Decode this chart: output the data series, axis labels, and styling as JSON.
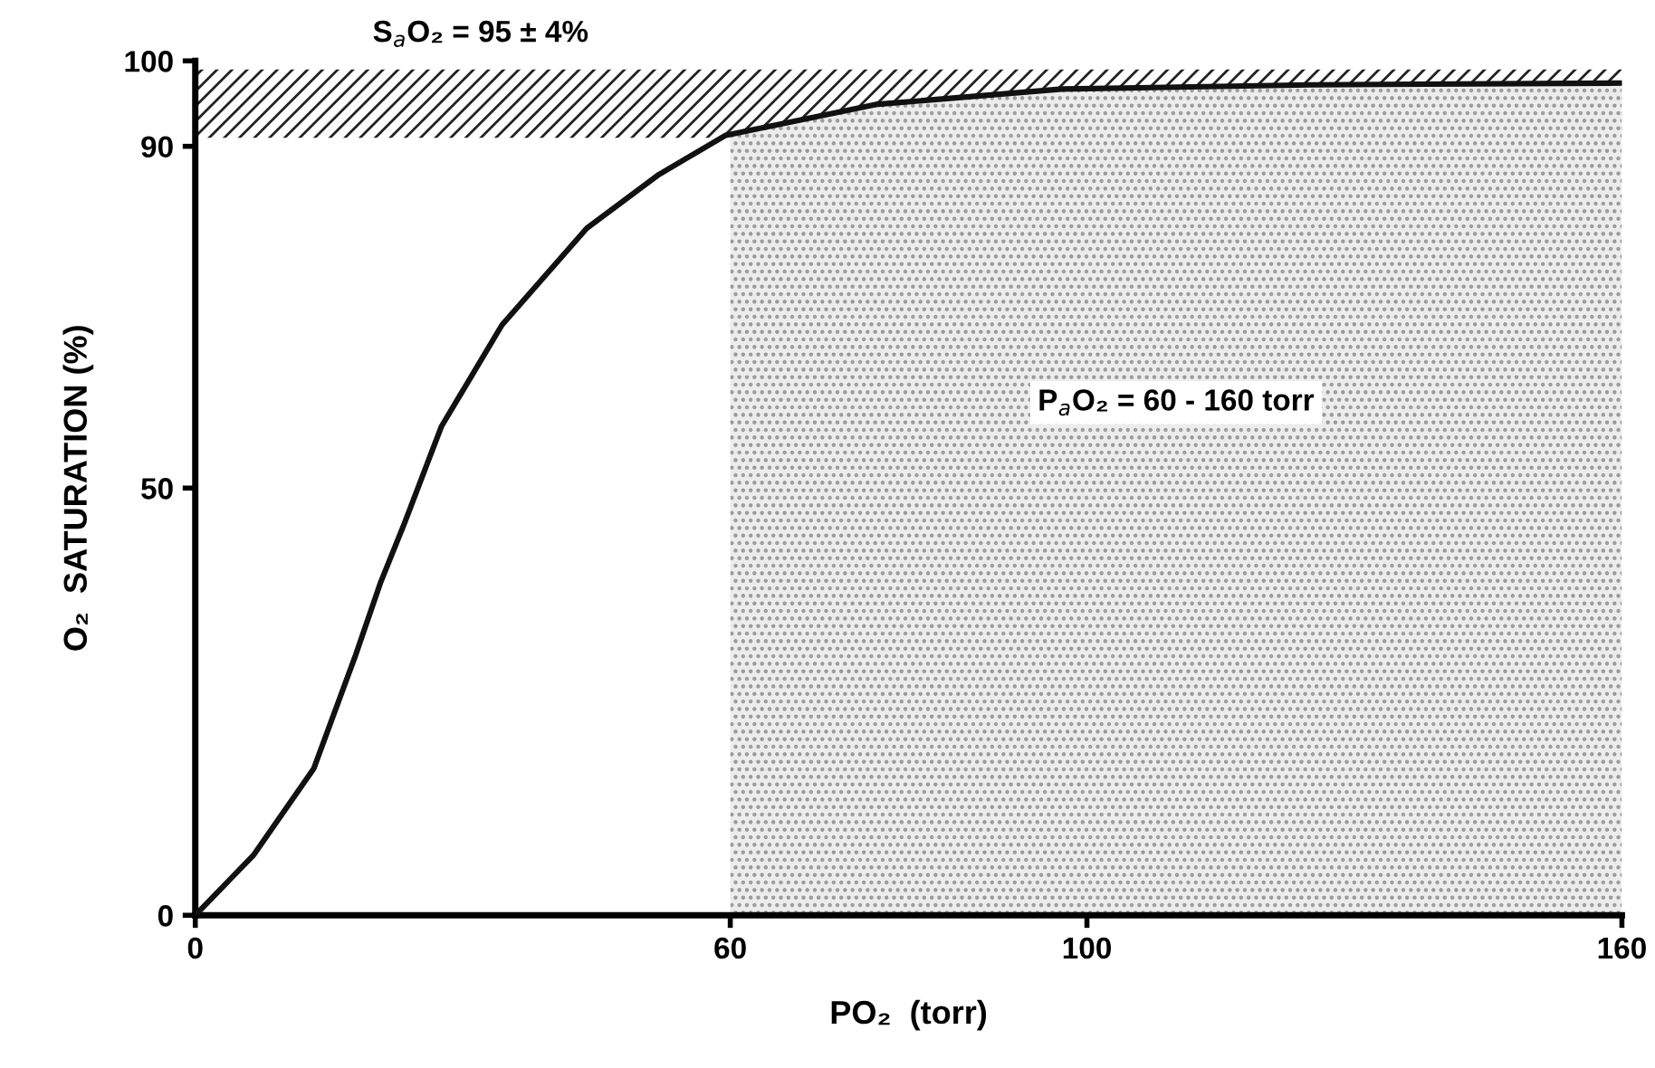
{
  "chart_data": {
    "type": "line",
    "xlabel": "PO₂  (torr)",
    "ylabel": "O₂  SATURATION (%)",
    "x": [
      0,
      6.5,
      13.3,
      18.0,
      20.8,
      23.5,
      27.6,
      34.4,
      43.9,
      52.0,
      59.5,
      76.3,
      97.2,
      125,
      160
    ],
    "series": [
      {
        "color": "#111111",
        "values": [
          0,
          7.0,
          17.2,
          30.5,
          39.0,
          46.0,
          57.2,
          69.1,
          80.4,
          86.7,
          91.3,
          94.9,
          96.7,
          97.2,
          97.4
        ]
      }
    ],
    "xlim": [
      0,
      160
    ],
    "ylim": [
      0,
      100
    ],
    "xticks": [
      0,
      60,
      100,
      160
    ],
    "yticks": [
      0,
      50,
      90,
      100
    ],
    "bands": [
      {
        "axis": "y",
        "from": 91,
        "to": 99,
        "label": "S$_{a}$O₂ = 95 ± 4%",
        "color": "#222222"
      },
      {
        "axis": "x",
        "from": 60,
        "to": 160,
        "label": "P$_{a}$O₂ = 60 - 160 torr",
        "color": "#9a9a9a"
      }
    ],
    "grid": false,
    "marker": "none",
    "line_style": "solid"
  }
}
